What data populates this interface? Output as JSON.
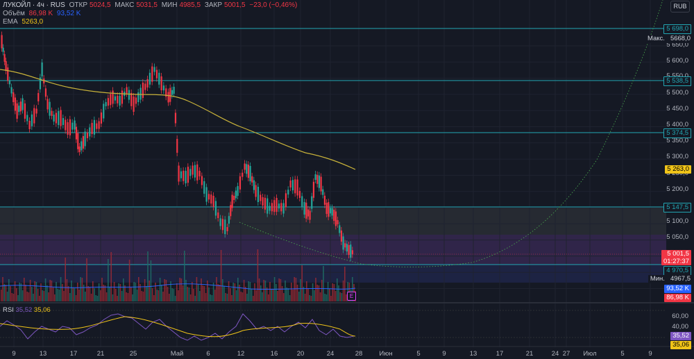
{
  "legend": {
    "symbol": "ЛУКОЙЛ · 4ч · RUS",
    "open_label": "ОТКР",
    "open": "5024,5",
    "high_label": "МАКС",
    "high": "5031,5",
    "low_label": "МИН",
    "low": "4985,5",
    "close_label": "ЗАКР",
    "close": "5001,5",
    "change": "−23,0 (−0,46%)",
    "volume_label": "Объём",
    "volume1": "86,98 K",
    "volume2": "93,52 K",
    "ema_label": "EMA",
    "ema_value": "5263,0"
  },
  "currency": "RUB",
  "price_axis": {
    "ticks": [
      "5 650,0",
      "5 600,0",
      "5 550,0",
      "5 500,0",
      "5 450,0",
      "5 400,0",
      "5 350,0",
      "5 300,0",
      "5 250,0",
      "5 200,0",
      "5 100,0",
      "5 050,0",
      "5 000,0"
    ],
    "max_label": "Макс.",
    "max_value": "5668,0",
    "min_label": "Мин.",
    "min_value": "4967,5",
    "levels": [
      "5 698,0",
      "5 538,5",
      "5 374,5",
      "5 147,5",
      "4 970,5"
    ],
    "ema_tag": "5 263,0",
    "last_price": "5 001,5",
    "countdown": "01:27:37",
    "vol_tag_1": "93,52 K",
    "vol_tag_2": "86,98 K"
  },
  "rsi": {
    "label": "RSI",
    "value1": "35,52",
    "value2": "35,06",
    "ticks": [
      "60,00",
      "40,00"
    ],
    "tag1": "35,52",
    "tag2": "35,06"
  },
  "time_axis": [
    "9",
    "13",
    "17",
    "21",
    "25",
    "Май",
    "6",
    "12",
    "16",
    "20",
    "24",
    "28",
    "Июн",
    "5",
    "9",
    "13",
    "17",
    "21",
    "24",
    "27",
    "Июл",
    "5",
    "9"
  ],
  "earnings_marker": "E",
  "colors": {
    "background": "#151924",
    "up": "#26a69a",
    "down": "#f23645",
    "level_line": "#22a6b3",
    "ema": "#c9b33a",
    "rsi": "#7e57c2"
  },
  "chart_data": {
    "type": "candlestick",
    "title": "ЛУКОЙЛ · 4ч · RUS",
    "price_range": [
      4950,
      5700
    ],
    "horizontal_levels": [
      5698.0,
      5538.5,
      5374.5,
      5147.5,
      4970.5
    ],
    "ema": 5263.0,
    "last_close": 5001.5,
    "session_high": 5668.0,
    "session_low": 4967.5,
    "rsi": [
      35.52,
      35.06
    ]
  }
}
